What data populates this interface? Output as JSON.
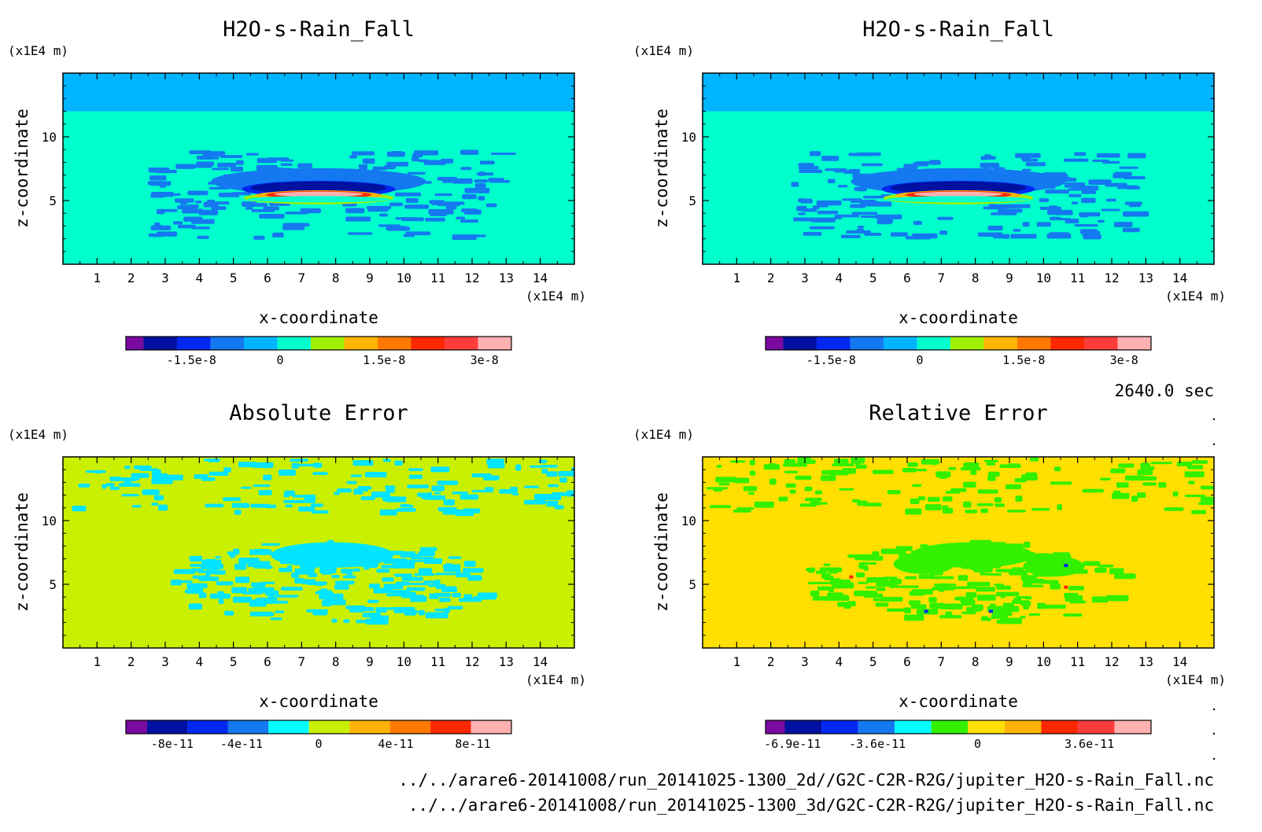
{
  "time_label": "2640.0 sec",
  "footer": {
    "line1": "../../arare6-20141008/run_20141025-1300_2d//G2C-C2R-R2G/jupiter_H2O-s-Rain_Fall.nc",
    "line2": "../../arare6-20141008/run_20141025-1300_3d/G2C-C2R-R2G/jupiter_H2O-s-Rain_Fall.nc"
  },
  "chart_data": [
    {
      "type": "heatmap",
      "title": "H2O-s-Rain_Fall",
      "xlabel": "x-coordinate",
      "ylabel": "z-coordinate",
      "x_unit": "(x1E4 m)",
      "y_unit": "(x1E4 m)",
      "xlim": [
        0,
        15
      ],
      "ylim": [
        0,
        15
      ],
      "x_ticks": [
        "1",
        "2",
        "3",
        "4",
        "5",
        "6",
        "7",
        "8",
        "9",
        "10",
        "11",
        "12",
        "13",
        "14"
      ],
      "y_ticks": [
        "5",
        "10"
      ],
      "background": "#00ffcc",
      "top_band_color": "#00b4ff",
      "top_band_from": 12.0,
      "colorbar": {
        "colors": [
          "#7a0aa0",
          "#0010a0",
          "#0028f0",
          "#1478f0",
          "#00b4ff",
          "#00ffcc",
          "#a0f000",
          "#ffb400",
          "#ff7800",
          "#ff2800",
          "#ff3c3c",
          "#ffb0b0"
        ],
        "labels": [
          "-1.5e-8",
          "0",
          "1.5e-8",
          "3e-8"
        ]
      }
    },
    {
      "type": "heatmap",
      "title": "H2O-s-Rain_Fall",
      "xlabel": "x-coordinate",
      "ylabel": "z-coordinate",
      "x_unit": "(x1E4 m)",
      "y_unit": "(x1E4 m)",
      "xlim": [
        0,
        15
      ],
      "ylim": [
        0,
        15
      ],
      "x_ticks": [
        "1",
        "2",
        "3",
        "4",
        "5",
        "6",
        "7",
        "8",
        "9",
        "10",
        "11",
        "12",
        "13",
        "14"
      ],
      "y_ticks": [
        "5",
        "10"
      ],
      "background": "#00ffcc",
      "top_band_color": "#00b4ff",
      "top_band_from": 12.0,
      "colorbar": {
        "colors": [
          "#7a0aa0",
          "#0010a0",
          "#0028f0",
          "#1478f0",
          "#00b4ff",
          "#00ffcc",
          "#a0f000",
          "#ffb400",
          "#ff7800",
          "#ff2800",
          "#ff3c3c",
          "#ffb0b0"
        ],
        "labels": [
          "-1.5e-8",
          "0",
          "1.5e-8",
          "3e-8"
        ]
      }
    },
    {
      "type": "heatmap",
      "title": "Absolute Error",
      "xlabel": "x-coordinate",
      "ylabel": "z-coordinate",
      "x_unit": "(x1E4 m)",
      "y_unit": "(x1E4 m)",
      "xlim": [
        0,
        15
      ],
      "ylim": [
        0,
        15
      ],
      "x_ticks": [
        "1",
        "2",
        "3",
        "4",
        "5",
        "6",
        "7",
        "8",
        "9",
        "10",
        "11",
        "12",
        "13",
        "14"
      ],
      "y_ticks": [
        "5",
        "10"
      ],
      "background": "#c8f000",
      "noise_color": "#00e4ff",
      "colorbar": {
        "colors": [
          "#7a0aa0",
          "#0010a0",
          "#0028f0",
          "#1478f0",
          "#00ffff",
          "#c8f000",
          "#ffb400",
          "#ff7800",
          "#ff2800",
          "#ffb0b0"
        ],
        "labels": [
          "-8e-11",
          "-4e-11",
          "0",
          "4e-11",
          "8e-11"
        ]
      }
    },
    {
      "type": "heatmap",
      "title": "Relative Error",
      "xlabel": "x-coordinate",
      "ylabel": "z-coordinate",
      "x_unit": "(x1E4 m)",
      "y_unit": "(x1E4 m)",
      "xlim": [
        0,
        15
      ],
      "ylim": [
        0,
        15
      ],
      "x_ticks": [
        "1",
        "2",
        "3",
        "4",
        "5",
        "6",
        "7",
        "8",
        "9",
        "10",
        "11",
        "12",
        "13",
        "14"
      ],
      "y_ticks": [
        "5",
        "10"
      ],
      "background": "#ffe000",
      "noise_color": "#32f000",
      "colorbar": {
        "colors": [
          "#7a0aa0",
          "#0010a0",
          "#0028f0",
          "#1478f0",
          "#00ffff",
          "#32f000",
          "#ffe000",
          "#ffb400",
          "#ff2800",
          "#ff3c3c",
          "#ffb0b0"
        ],
        "labels": [
          "-6.9e-11",
          "-3.6e-11",
          "0",
          "3.6e-11"
        ]
      }
    }
  ]
}
